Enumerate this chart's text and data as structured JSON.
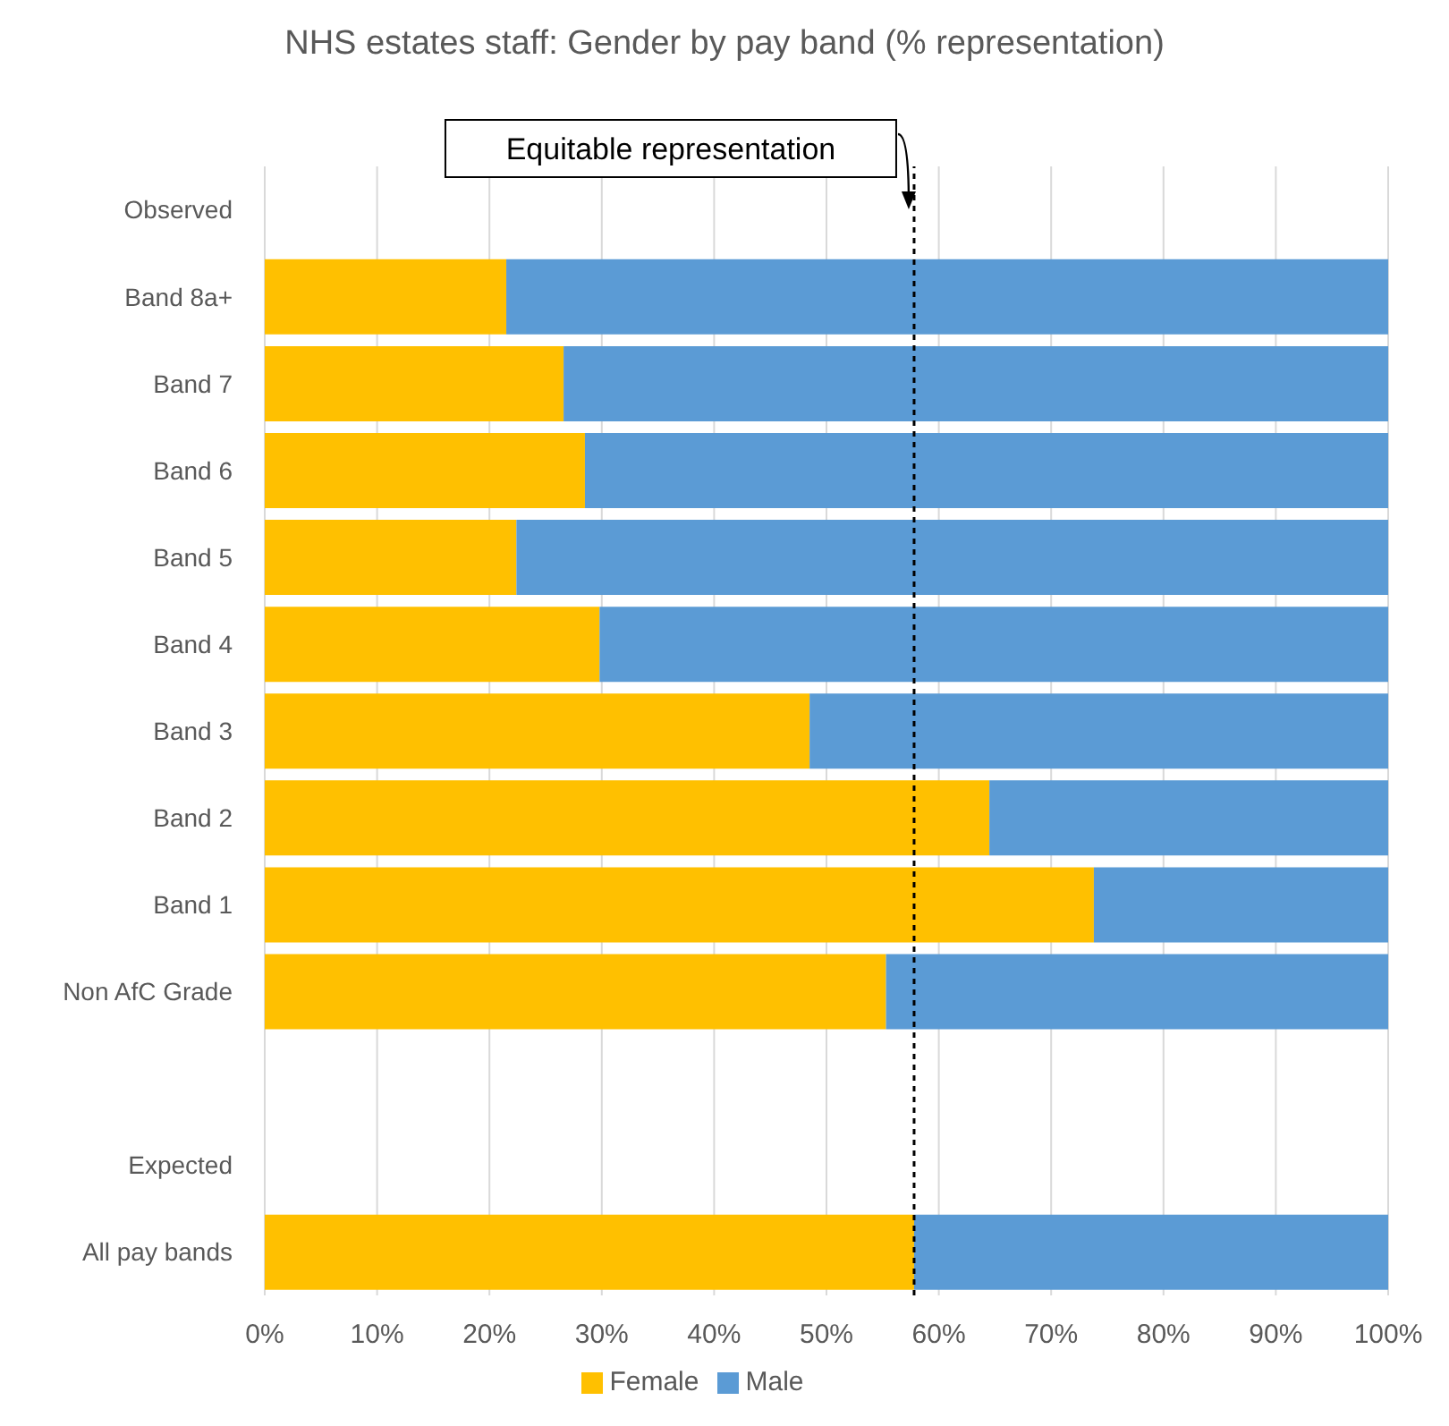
{
  "chart_data": {
    "type": "bar",
    "orientation": "horizontal",
    "stacked": true,
    "title": "NHS estates staff: Gender by pay band (% representation)",
    "categories": [
      "Observed",
      "Band 8a+",
      "Band 7",
      "Band 6",
      "Band 5",
      "Band 4",
      "Band 3",
      "Band 2",
      "Band 1",
      "Non AfC Grade",
      null,
      "Expected",
      "All pay bands"
    ],
    "series": [
      {
        "name": "Female",
        "color": "#ffc000",
        "values": [
          null,
          21.5,
          26.6,
          28.5,
          22.4,
          29.8,
          48.5,
          64.5,
          73.8,
          55.3,
          null,
          null,
          57.8
        ]
      },
      {
        "name": "Male",
        "color": "#5b9bd5",
        "values": [
          null,
          78.5,
          73.4,
          71.5,
          77.6,
          70.2,
          51.5,
          35.5,
          26.2,
          44.7,
          null,
          null,
          42.2
        ]
      }
    ],
    "xlim": [
      0,
      100
    ],
    "xticks": [
      {
        "value": 0,
        "label": "0%"
      },
      {
        "value": 10,
        "label": "10%"
      },
      {
        "value": 20,
        "label": "20%"
      },
      {
        "value": 30,
        "label": "30%"
      },
      {
        "value": 40,
        "label": "40%"
      },
      {
        "value": 50,
        "label": "50%"
      },
      {
        "value": 60,
        "label": "60%"
      },
      {
        "value": 70,
        "label": "70%"
      },
      {
        "value": 80,
        "label": "80%"
      },
      {
        "value": 90,
        "label": "90%"
      },
      {
        "value": 100,
        "label": "100%"
      }
    ],
    "ref_lines": [
      {
        "axis": "x",
        "value": 57.8,
        "label": "Equitable representation",
        "color": "#000000",
        "line_style": "dashed"
      }
    ],
    "grid": "x",
    "legend": "bottom"
  }
}
